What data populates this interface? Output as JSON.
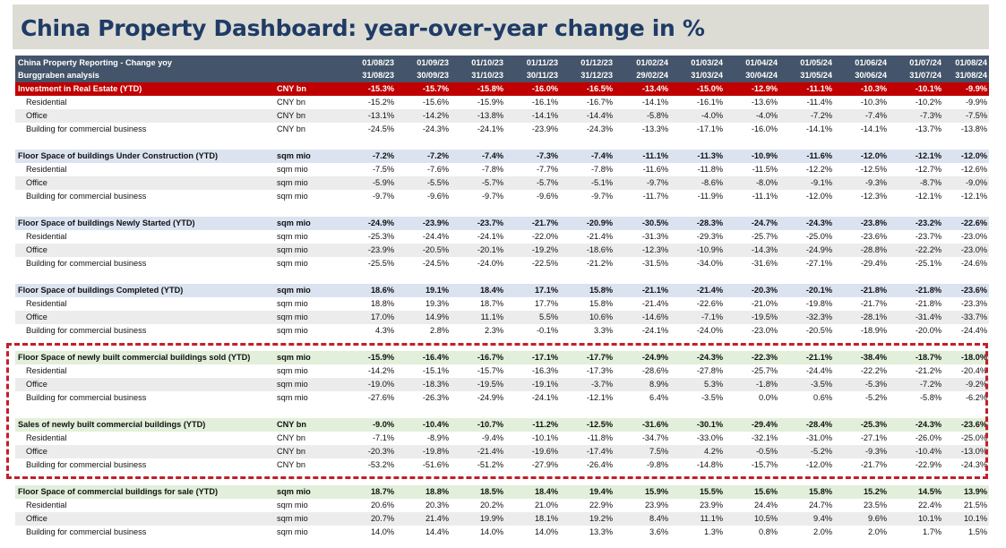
{
  "title": "China Property Dashboard: year-over-year change in %",
  "header": {
    "line1": "China Property Reporting - Change yoy",
    "line2": "Burggraben analysis",
    "dates_start": [
      "01/08/23",
      "01/09/23",
      "01/10/23",
      "01/11/23",
      "01/12/23",
      "01/02/24",
      "01/03/24",
      "01/04/24",
      "01/05/24",
      "01/06/24",
      "01/07/24",
      "01/08/24"
    ],
    "dates_end": [
      "31/08/23",
      "30/09/23",
      "31/10/23",
      "30/11/23",
      "31/12/23",
      "29/02/24",
      "31/03/24",
      "30/04/24",
      "31/05/24",
      "30/06/24",
      "31/07/24",
      "31/08/24"
    ]
  },
  "sections": [
    {
      "style": "red",
      "rows": [
        {
          "label": "Investment in Real Estate (YTD)",
          "unit": "CNY bn",
          "values": [
            "-15.3%",
            "-15.7%",
            "-15.8%",
            "-16.0%",
            "-16.5%",
            "-13.4%",
            "-15.0%",
            "-12.9%",
            "-11.1%",
            "-10.3%",
            "-10.1%",
            "-9.9%"
          ]
        },
        {
          "label": "Residential",
          "unit": "CNY bn",
          "values": [
            "-15.2%",
            "-15.6%",
            "-15.9%",
            "-16.1%",
            "-16.7%",
            "-14.1%",
            "-16.1%",
            "-13.6%",
            "-11.4%",
            "-10.3%",
            "-10.2%",
            "-9.9%"
          ]
        },
        {
          "label": "Office",
          "unit": "CNY bn",
          "values": [
            "-13.1%",
            "-14.2%",
            "-13.8%",
            "-14.1%",
            "-14.4%",
            "-5.8%",
            "-4.0%",
            "-4.0%",
            "-7.2%",
            "-7.4%",
            "-7.3%",
            "-7.5%"
          ]
        },
        {
          "label": "Building for commercial business",
          "unit": "CNY bn",
          "values": [
            "-24.5%",
            "-24.3%",
            "-24.1%",
            "-23.9%",
            "-24.3%",
            "-13.3%",
            "-17.1%",
            "-16.0%",
            "-14.1%",
            "-14.1%",
            "-13.7%",
            "-13.8%"
          ]
        }
      ]
    },
    {
      "style": "blue",
      "rows": [
        {
          "label": "Floor Space of buildings Under Construction (YTD)",
          "unit": "sqm mio",
          "values": [
            "-7.2%",
            "-7.2%",
            "-7.4%",
            "-7.3%",
            "-7.4%",
            "-11.1%",
            "-11.3%",
            "-10.9%",
            "-11.6%",
            "-12.0%",
            "-12.1%",
            "-12.0%"
          ]
        },
        {
          "label": "Residential",
          "unit": "sqm mio",
          "values": [
            "-7.5%",
            "-7.6%",
            "-7.8%",
            "-7.7%",
            "-7.8%",
            "-11.6%",
            "-11.8%",
            "-11.5%",
            "-12.2%",
            "-12.5%",
            "-12.7%",
            "-12.6%"
          ]
        },
        {
          "label": "Office",
          "unit": "sqm mio",
          "values": [
            "-5.9%",
            "-5.5%",
            "-5.7%",
            "-5.7%",
            "-5.1%",
            "-9.7%",
            "-8.6%",
            "-8.0%",
            "-9.1%",
            "-9.3%",
            "-8.7%",
            "-9.0%"
          ]
        },
        {
          "label": "Building for commercial business",
          "unit": "sqm mio",
          "values": [
            "-9.7%",
            "-9.6%",
            "-9.7%",
            "-9.6%",
            "-9.7%",
            "-11.7%",
            "-11.9%",
            "-11.1%",
            "-12.0%",
            "-12.3%",
            "-12.1%",
            "-12.1%"
          ]
        }
      ]
    },
    {
      "style": "blue",
      "rows": [
        {
          "label": "Floor Space of buildings Newly Started (YTD)",
          "unit": "sqm mio",
          "values": [
            "-24.9%",
            "-23.9%",
            "-23.7%",
            "-21.7%",
            "-20.9%",
            "-30.5%",
            "-28.3%",
            "-24.7%",
            "-24.3%",
            "-23.8%",
            "-23.2%",
            "-22.6%"
          ]
        },
        {
          "label": "Residential",
          "unit": "sqm mio",
          "values": [
            "-25.3%",
            "-24.4%",
            "-24.1%",
            "-22.0%",
            "-21.4%",
            "-31.3%",
            "-29.3%",
            "-25.7%",
            "-25.0%",
            "-23.6%",
            "-23.7%",
            "-23.0%"
          ]
        },
        {
          "label": "Office",
          "unit": "sqm mio",
          "values": [
            "-23.9%",
            "-20.5%",
            "-20.1%",
            "-19.2%",
            "-18.6%",
            "-12.3%",
            "-10.9%",
            "-14.3%",
            "-24.9%",
            "-28.8%",
            "-22.2%",
            "-23.0%"
          ]
        },
        {
          "label": "Building for commercial business",
          "unit": "sqm mio",
          "values": [
            "-25.5%",
            "-24.5%",
            "-24.0%",
            "-22.5%",
            "-21.2%",
            "-31.5%",
            "-34.0%",
            "-31.6%",
            "-27.1%",
            "-29.4%",
            "-25.1%",
            "-24.6%"
          ]
        }
      ]
    },
    {
      "style": "blue",
      "rows": [
        {
          "label": "Floor Space of buildings Completed (YTD)",
          "unit": "sqm mio",
          "values": [
            "18.6%",
            "19.1%",
            "18.4%",
            "17.1%",
            "15.8%",
            "-21.1%",
            "-21.4%",
            "-20.3%",
            "-20.1%",
            "-21.8%",
            "-21.8%",
            "-23.6%"
          ]
        },
        {
          "label": "Residential",
          "unit": "sqm mio",
          "values": [
            "18.8%",
            "19.3%",
            "18.7%",
            "17.7%",
            "15.8%",
            "-21.4%",
            "-22.6%",
            "-21.0%",
            "-19.8%",
            "-21.7%",
            "-21.8%",
            "-23.3%"
          ]
        },
        {
          "label": "Office",
          "unit": "sqm mio",
          "values": [
            "17.0%",
            "14.9%",
            "11.1%",
            "5.5%",
            "10.6%",
            "-14.6%",
            "-7.1%",
            "-19.5%",
            "-32.3%",
            "-28.1%",
            "-31.4%",
            "-33.7%"
          ]
        },
        {
          "label": "Building for commercial business",
          "unit": "sqm mio",
          "values": [
            "4.3%",
            "2.8%",
            "2.3%",
            "-0.1%",
            "3.3%",
            "-24.1%",
            "-24.0%",
            "-23.0%",
            "-20.5%",
            "-18.9%",
            "-20.0%",
            "-24.4%"
          ]
        }
      ]
    },
    {
      "style": "green",
      "rows": [
        {
          "label": "Floor Space of newly built commercial buildings sold (YTD)",
          "unit": "sqm mio",
          "values": [
            "-15.9%",
            "-16.4%",
            "-16.7%",
            "-17.1%",
            "-17.7%",
            "-24.9%",
            "-24.3%",
            "-22.3%",
            "-21.1%",
            "-38.4%",
            "-18.7%",
            "-18.0%"
          ]
        },
        {
          "label": "Residential",
          "unit": "sqm mio",
          "values": [
            "-14.2%",
            "-15.1%",
            "-15.7%",
            "-16.3%",
            "-17.3%",
            "-28.6%",
            "-27.8%",
            "-25.7%",
            "-24.4%",
            "-22.2%",
            "-21.2%",
            "-20.4%"
          ]
        },
        {
          "label": "Office",
          "unit": "sqm mio",
          "values": [
            "-19.0%",
            "-18.3%",
            "-19.5%",
            "-19.1%",
            "-3.7%",
            "8.9%",
            "5.3%",
            "-1.8%",
            "-3.5%",
            "-5.3%",
            "-7.2%",
            "-9.2%"
          ]
        },
        {
          "label": "Building for commercial business",
          "unit": "sqm mio",
          "values": [
            "-27.6%",
            "-26.3%",
            "-24.9%",
            "-24.1%",
            "-12.1%",
            "6.4%",
            "-3.5%",
            "0.0%",
            "0.6%",
            "-5.2%",
            "-5.8%",
            "-6.2%"
          ]
        }
      ]
    },
    {
      "style": "green",
      "rows": [
        {
          "label": "Sales of newly built commercial buildings (YTD)",
          "unit": "CNY bn",
          "values": [
            "-9.0%",
            "-10.4%",
            "-10.7%",
            "-11.2%",
            "-12.5%",
            "-31.6%",
            "-30.1%",
            "-29.4%",
            "-28.4%",
            "-25.3%",
            "-24.3%",
            "-23.6%"
          ]
        },
        {
          "label": "Residential",
          "unit": "CNY bn",
          "values": [
            "-7.1%",
            "-8.9%",
            "-9.4%",
            "-10.1%",
            "-11.8%",
            "-34.7%",
            "-33.0%",
            "-32.1%",
            "-31.0%",
            "-27.1%",
            "-26.0%",
            "-25.0%"
          ]
        },
        {
          "label": "Office",
          "unit": "CNY bn",
          "values": [
            "-20.3%",
            "-19.8%",
            "-21.4%",
            "-19.6%",
            "-17.4%",
            "7.5%",
            "4.2%",
            "-0.5%",
            "-5.2%",
            "-9.3%",
            "-10.4%",
            "-13.0%"
          ]
        },
        {
          "label": "Building for commercial business",
          "unit": "CNY bn",
          "values": [
            "-53.2%",
            "-51.6%",
            "-51.2%",
            "-27.9%",
            "-26.4%",
            "-9.8%",
            "-14.8%",
            "-15.7%",
            "-12.0%",
            "-21.7%",
            "-22.9%",
            "-24.3%"
          ]
        }
      ]
    },
    {
      "style": "green",
      "rows": [
        {
          "label": "Floor Space of commercial buildings for sale (YTD)",
          "unit": "sqm mio",
          "values": [
            "18.7%",
            "18.8%",
            "18.5%",
            "18.4%",
            "19.4%",
            "15.9%",
            "15.5%",
            "15.6%",
            "15.8%",
            "15.2%",
            "14.5%",
            "13.9%"
          ]
        },
        {
          "label": "Residential",
          "unit": "sqm mio",
          "values": [
            "20.6%",
            "20.3%",
            "20.2%",
            "21.0%",
            "22.9%",
            "23.9%",
            "23.9%",
            "24.4%",
            "24.7%",
            "23.5%",
            "22.4%",
            "21.5%"
          ]
        },
        {
          "label": "Office",
          "unit": "sqm mio",
          "values": [
            "20.7%",
            "21.4%",
            "19.9%",
            "18.1%",
            "19.2%",
            "8.4%",
            "11.1%",
            "10.5%",
            "9.4%",
            "9.6%",
            "10.1%",
            "10.1%"
          ]
        },
        {
          "label": "Building for commercial business",
          "unit": "sqm mio",
          "values": [
            "14.0%",
            "14.4%",
            "14.0%",
            "14.0%",
            "13.3%",
            "3.6%",
            "1.3%",
            "0.8%",
            "2.0%",
            "2.0%",
            "1.7%",
            "1.5%"
          ]
        }
      ]
    }
  ]
}
